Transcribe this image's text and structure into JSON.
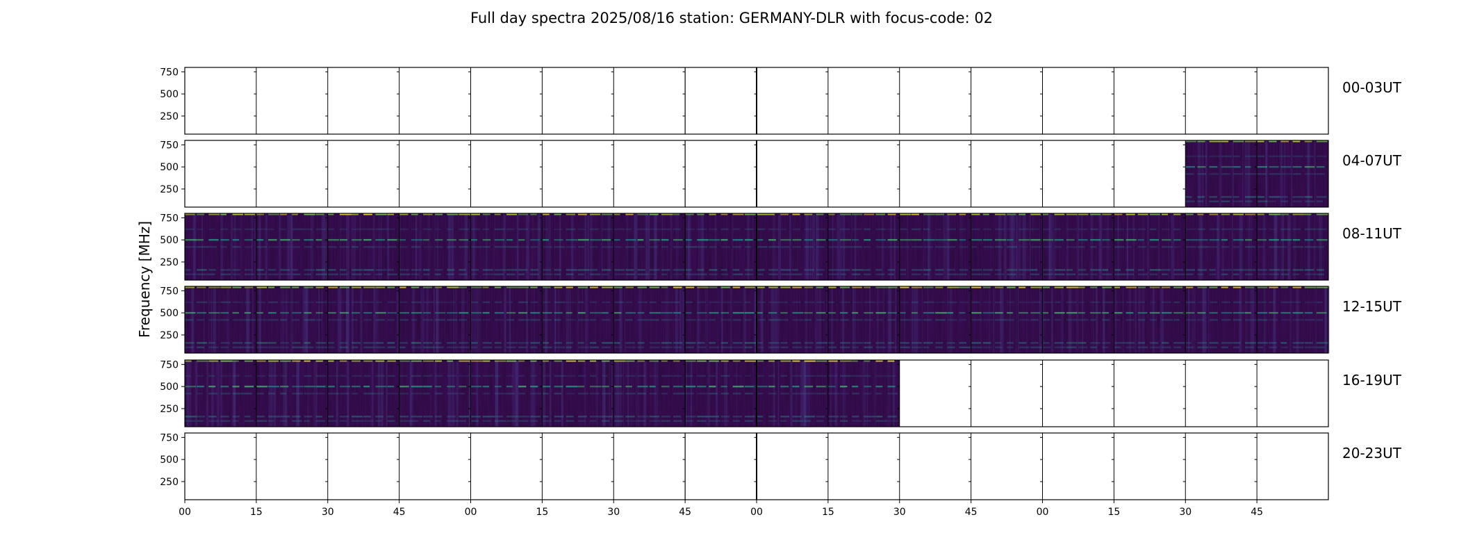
{
  "chart_data": {
    "type": "heatmap",
    "title": "Full day spectra 2025/08/16 station: GERMANY-DLR with focus-code: 02",
    "ylabel": "Frequency [MHz]",
    "xlabel": "",
    "ytick_labels": [
      "750",
      "500",
      "250"
    ],
    "xtick_labels": [
      "00",
      "15",
      "30",
      "45",
      "00",
      "15",
      "30",
      "45",
      "00",
      "15",
      "30",
      "45",
      "00",
      "15",
      "30",
      "45"
    ],
    "ylim": [
      45,
      800
    ],
    "colormap": "viridis",
    "rows": [
      {
        "label": "00-03UT",
        "panels_with_data": []
      },
      {
        "label": "04-07UT",
        "panels_with_data": [
          14,
          15
        ]
      },
      {
        "label": "08-11UT",
        "panels_with_data": [
          0,
          1,
          2,
          3,
          4,
          5,
          6,
          7,
          8,
          9,
          10,
          11,
          12,
          13,
          14,
          15
        ]
      },
      {
        "label": "12-15UT",
        "panels_with_data": [
          0,
          1,
          2,
          3,
          4,
          5,
          6,
          7,
          8,
          9,
          10,
          11,
          12,
          13,
          14,
          15
        ]
      },
      {
        "label": "16-19UT",
        "panels_with_data": [
          0,
          1,
          2,
          3,
          4,
          5,
          6,
          7,
          8,
          9
        ]
      },
      {
        "label": "20-23UT",
        "panels_with_data": []
      }
    ],
    "panel_style": {
      "8-11": "bright-lower",
      "8-8": "bright-lower-right",
      "9-0": "bright-lower-left",
      "9-11": "hot-burst",
      "9-12": "dark-vertical",
      "10-2": "vertical-streaks",
      "10-4": "vertical-streaks",
      "10-6": "bright-block",
      "10-7": "vertical-streaks"
    }
  }
}
